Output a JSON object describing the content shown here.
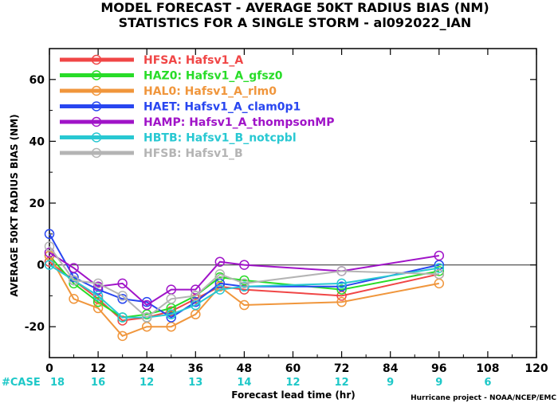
{
  "title_lines": [
    "MODEL FORECAST - AVERAGE 50KT RADIUS BIAS (NM)",
    "STATISTICS FOR A SINGLE STORM - al092022_IAN"
  ],
  "credit": "Hurricane project - NOAA/NCEP/EMC",
  "case_label": "#CASE",
  "case_color": "#1ec8c8",
  "chart_data": {
    "type": "line",
    "title": "MODEL FORECAST - AVERAGE 50KT RADIUS BIAS (NM)",
    "subtitle": "STATISTICS FOR A SINGLE STORM - al092022_IAN",
    "xlabel": "Forecast lead time (hr)",
    "ylabel": "AVERAGE 50KT RADIUS BIAS (NM)",
    "xlim": [
      0,
      120
    ],
    "ylim": [
      -30,
      70
    ],
    "xticks": [
      0,
      12,
      24,
      36,
      48,
      60,
      72,
      84,
      96,
      108,
      120
    ],
    "yticks": [
      -20,
      0,
      20,
      40,
      60
    ],
    "zero_line": true,
    "grid": false,
    "legend_position": "top-left",
    "case_counts": [
      {
        "x": 0,
        "n": "18"
      },
      {
        "x": 12,
        "n": "16"
      },
      {
        "x": 24,
        "n": "12"
      },
      {
        "x": 36,
        "n": "13"
      },
      {
        "x": 48,
        "n": "14"
      },
      {
        "x": 60,
        "n": "12"
      },
      {
        "x": 72,
        "n": "12"
      },
      {
        "x": 84,
        "n": "9"
      },
      {
        "x": 96,
        "n": "9"
      },
      {
        "x": 108,
        "n": "6"
      }
    ],
    "series": [
      {
        "name": "HFSA: Hafsv1_A",
        "color": "#f04646",
        "x": [
          0,
          6,
          12,
          18,
          24,
          30,
          36,
          42,
          48,
          72,
          96
        ],
        "y": [
          1,
          -5,
          -11,
          -18,
          -17,
          -15,
          -11,
          -7,
          -8,
          -10,
          -3
        ]
      },
      {
        "name": "HAZ0: Hafsv1_A_gfsz0",
        "color": "#28dc28",
        "x": [
          0,
          6,
          12,
          18,
          24,
          30,
          36,
          42,
          48,
          72,
          96
        ],
        "y": [
          3,
          -6,
          -12,
          -17,
          -16,
          -14,
          -10,
          -4,
          -5,
          -8,
          -2
        ]
      },
      {
        "name": "HAL0: Hafsv1_A_rlm0",
        "color": "#f0963c",
        "x": [
          0,
          6,
          12,
          18,
          24,
          30,
          36,
          42,
          48,
          72,
          96
        ],
        "y": [
          3,
          -11,
          -14,
          -23,
          -20,
          -20,
          -16,
          -7,
          -13,
          -12,
          -6
        ]
      },
      {
        "name": "HAET: Hafsv1_A_clam0p1",
        "color": "#2846f0",
        "x": [
          0,
          6,
          12,
          18,
          24,
          30,
          36,
          42,
          48,
          72,
          96
        ],
        "y": [
          10,
          -4,
          -8,
          -11,
          -12,
          -17,
          -12,
          -6,
          -7,
          -7,
          0
        ]
      },
      {
        "name": "HAMP: Hafsv1_A_thompsonMP",
        "color": "#a014c8",
        "x": [
          0,
          6,
          12,
          18,
          24,
          30,
          36,
          42,
          48,
          72,
          96
        ],
        "y": [
          4,
          -1,
          -7,
          -6,
          -13,
          -8,
          -8,
          1,
          0,
          -2,
          3
        ]
      },
      {
        "name": "HBTB: Hafsv1_B_notcpbl",
        "color": "#28c8d2",
        "x": [
          0,
          6,
          12,
          18,
          24,
          30,
          36,
          42,
          48,
          72,
          96
        ],
        "y": [
          0,
          -5,
          -10,
          -17,
          -17,
          -16,
          -13,
          -8,
          -7,
          -6,
          -1
        ]
      },
      {
        "name": "HFSB: Hafsv1_B",
        "color": "#b4b4b4",
        "x": [
          0,
          6,
          12,
          18,
          24,
          30,
          36,
          42,
          48,
          72,
          96
        ],
        "y": [
          6,
          -5,
          -6,
          -10,
          -17,
          -11,
          -10,
          -3,
          -6,
          -2,
          -3
        ]
      }
    ]
  }
}
